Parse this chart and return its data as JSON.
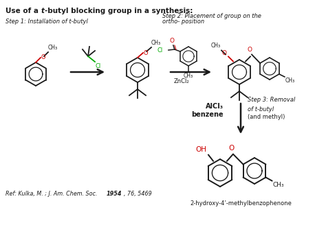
{
  "title_normal": "Use of a ",
  "title_italic": "t",
  "title_rest": "-butyl blocking group in a synthesis:",
  "bg_color": "#ffffff",
  "step1_label": "Step 1: Installation of t-butyl",
  "step2_label": "Step 2: Placement of group on the\northo- position",
  "step3_label": "Step 3: Removal\nof t-butyl",
  "step3_sub": "(and methyl)",
  "reagent1": "ZnCl₂",
  "reagent2_line1": "AlCl₃",
  "reagent2_line2": "benzene",
  "product_name": "2-hydroxy-4’-methylbenzophenone",
  "ref_italic": "Ref: Kulka, M. ; J. Am. Chem. Soc. ",
  "ref_bold": "1954",
  "ref_rest": ", 76, 5469",
  "red": "#cc0000",
  "green": "#00aa00",
  "black": "#1a1a1a",
  "dkgray": "#333333"
}
